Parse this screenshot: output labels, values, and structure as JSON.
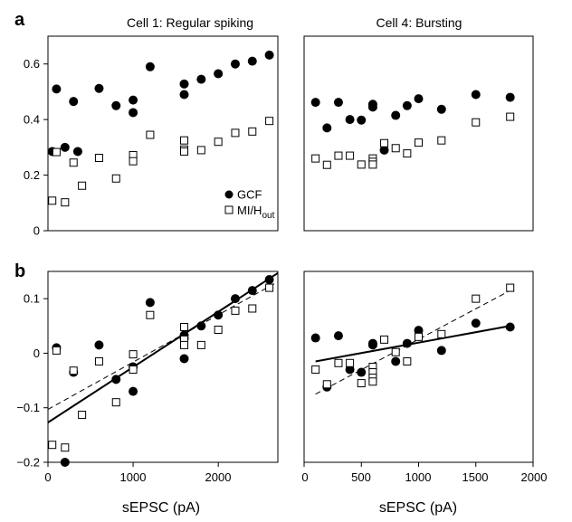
{
  "chart_data": [
    {
      "id": "a-cell1",
      "panel": "a",
      "type": "scatter",
      "title": "Cell 1: Regular spiking",
      "xlim": [
        0,
        2700
      ],
      "ylim": [
        0,
        0.7
      ],
      "yticks": [
        0,
        0.2,
        0.4,
        0.6
      ],
      "xticks": [],
      "grid": false,
      "legend": {
        "placement": "bottom-right",
        "entries": [
          "GCF",
          "MI/H"
        ]
      },
      "series": [
        {
          "name": "GCF",
          "marker": "filled-circle",
          "points": [
            [
              50,
              0.285
            ],
            [
              100,
              0.51
            ],
            [
              200,
              0.3
            ],
            [
              300,
              0.465
            ],
            [
              350,
              0.285
            ],
            [
              600,
              0.512
            ],
            [
              800,
              0.45
            ],
            [
              1000,
              0.47
            ],
            [
              1000,
              0.425
            ],
            [
              1200,
              0.59
            ],
            [
              1600,
              0.528
            ],
            [
              1600,
              0.49
            ],
            [
              1800,
              0.545
            ],
            [
              2000,
              0.565
            ],
            [
              2200,
              0.6
            ],
            [
              2400,
              0.61
            ],
            [
              2600,
              0.632
            ]
          ]
        },
        {
          "name": "MI/H",
          "subscript": "out",
          "marker": "open-square",
          "points": [
            [
              50,
              0.108
            ],
            [
              100,
              0.283
            ],
            [
              200,
              0.102
            ],
            [
              300,
              0.245
            ],
            [
              400,
              0.162
            ],
            [
              600,
              0.262
            ],
            [
              800,
              0.188
            ],
            [
              1000,
              0.272
            ],
            [
              1000,
              0.25
            ],
            [
              1200,
              0.345
            ],
            [
              1600,
              0.325
            ],
            [
              1600,
              0.292
            ],
            [
              1600,
              0.285
            ],
            [
              1800,
              0.29
            ],
            [
              2000,
              0.32
            ],
            [
              2200,
              0.352
            ],
            [
              2400,
              0.357
            ],
            [
              2600,
              0.395
            ]
          ]
        }
      ]
    },
    {
      "id": "a-cell4",
      "panel": "a",
      "type": "scatter",
      "title": "Cell 4: Bursting",
      "xlim": [
        0,
        2000
      ],
      "ylim": [
        0,
        0.7
      ],
      "yticks": [],
      "xticks": [],
      "grid": false,
      "series": [
        {
          "name": "GCF",
          "marker": "filled-circle",
          "points": [
            [
              100,
              0.462
            ],
            [
              200,
              0.37
            ],
            [
              300,
              0.462
            ],
            [
              400,
              0.4
            ],
            [
              500,
              0.398
            ],
            [
              600,
              0.455
            ],
            [
              600,
              0.445
            ],
            [
              700,
              0.29
            ],
            [
              800,
              0.415
            ],
            [
              900,
              0.45
            ],
            [
              1000,
              0.475
            ],
            [
              1200,
              0.437
            ],
            [
              1500,
              0.49
            ],
            [
              1800,
              0.48
            ]
          ]
        },
        {
          "name": "MI/H",
          "marker": "open-square",
          "points": [
            [
              100,
              0.26
            ],
            [
              200,
              0.237
            ],
            [
              300,
              0.27
            ],
            [
              400,
              0.27
            ],
            [
              500,
              0.238
            ],
            [
              600,
              0.26
            ],
            [
              600,
              0.248
            ],
            [
              600,
              0.238
            ],
            [
              700,
              0.315
            ],
            [
              800,
              0.297
            ],
            [
              900,
              0.278
            ],
            [
              1000,
              0.317
            ],
            [
              1200,
              0.325
            ],
            [
              1500,
              0.39
            ],
            [
              1800,
              0.41
            ]
          ]
        }
      ]
    },
    {
      "id": "b-cell1",
      "panel": "b",
      "type": "scatter",
      "xlabel": "sEPSC (pA)",
      "xlim": [
        0,
        2700
      ],
      "ylim": [
        -0.2,
        0.15
      ],
      "xticks": [
        0,
        1000,
        2000
      ],
      "yticks": [
        -0.2,
        -0.1,
        0,
        0.1
      ],
      "grid": false,
      "series": [
        {
          "name": "GCF",
          "marker": "filled-circle",
          "points": [
            [
              100,
              0.01
            ],
            [
              200,
              -0.2
            ],
            [
              300,
              -0.035
            ],
            [
              600,
              0.015
            ],
            [
              800,
              -0.048
            ],
            [
              1000,
              -0.025
            ],
            [
              1000,
              -0.07
            ],
            [
              1200,
              0.093
            ],
            [
              1600,
              0.033
            ],
            [
              1600,
              0.027
            ],
            [
              1600,
              -0.01
            ],
            [
              1800,
              0.05
            ],
            [
              2000,
              0.07
            ],
            [
              2200,
              0.1
            ],
            [
              2400,
              0.115
            ],
            [
              2600,
              0.135
            ]
          ]
        },
        {
          "name": "MI/H",
          "marker": "open-square",
          "points": [
            [
              50,
              -0.168
            ],
            [
              100,
              0.005
            ],
            [
              200,
              -0.173
            ],
            [
              300,
              -0.032
            ],
            [
              400,
              -0.113
            ],
            [
              600,
              -0.015
            ],
            [
              800,
              -0.09
            ],
            [
              1000,
              -0.03
            ],
            [
              1000,
              -0.002
            ],
            [
              1200,
              0.07
            ],
            [
              1600,
              0.048
            ],
            [
              1600,
              0.025
            ],
            [
              1600,
              0.015
            ],
            [
              1800,
              0.015
            ],
            [
              2000,
              0.043
            ],
            [
              2200,
              0.078
            ],
            [
              2400,
              0.082
            ],
            [
              2600,
              0.12
            ]
          ]
        }
      ],
      "fits": [
        {
          "style": "solid",
          "x": [
            0,
            2700
          ],
          "y": [
            -0.127,
            0.147
          ]
        },
        {
          "style": "dashed",
          "x": [
            0,
            2700
          ],
          "y": [
            -0.103,
            0.131
          ]
        }
      ]
    },
    {
      "id": "b-cell4",
      "panel": "b",
      "type": "scatter",
      "xlabel": "sEPSC (pA)",
      "xlim": [
        0,
        2000
      ],
      "ylim": [
        -0.2,
        0.15
      ],
      "xticks": [
        0,
        500,
        1000,
        1500,
        2000
      ],
      "yticks": [],
      "grid": false,
      "series": [
        {
          "name": "GCF",
          "marker": "filled-circle",
          "points": [
            [
              100,
              0.028
            ],
            [
              200,
              -0.062
            ],
            [
              300,
              0.032
            ],
            [
              400,
              -0.03
            ],
            [
              500,
              -0.035
            ],
            [
              600,
              0.015
            ],
            [
              600,
              0.018
            ],
            [
              800,
              -0.015
            ],
            [
              900,
              0.018
            ],
            [
              1000,
              0.042
            ],
            [
              1200,
              0.005
            ],
            [
              1500,
              0.055
            ],
            [
              1800,
              0.048
            ]
          ]
        },
        {
          "name": "MI/H",
          "marker": "open-square",
          "points": [
            [
              100,
              -0.03
            ],
            [
              200,
              -0.057
            ],
            [
              300,
              -0.018
            ],
            [
              400,
              -0.018
            ],
            [
              500,
              -0.055
            ],
            [
              600,
              -0.025
            ],
            [
              600,
              -0.035
            ],
            [
              600,
              -0.045
            ],
            [
              600,
              -0.052
            ],
            [
              700,
              0.025
            ],
            [
              800,
              0.002
            ],
            [
              900,
              -0.015
            ],
            [
              1000,
              0.03
            ],
            [
              1200,
              0.035
            ],
            [
              1500,
              0.1
            ],
            [
              1800,
              0.12
            ]
          ]
        }
      ],
      "fits": [
        {
          "style": "solid",
          "x": [
            100,
            1800
          ],
          "y": [
            -0.015,
            0.05
          ]
        },
        {
          "style": "dashed",
          "x": [
            100,
            1800
          ],
          "y": [
            -0.075,
            0.115
          ]
        }
      ]
    }
  ],
  "panel_letters": {
    "a": "a",
    "b": "b"
  },
  "tick_text": {
    "a_left_y": [
      "0",
      "0.2",
      "0.4",
      "0.6"
    ],
    "b_left_y": [
      "−0.2",
      "−0.1",
      "0",
      "0.1"
    ],
    "b_left_x": [
      "0",
      "1000",
      "2000"
    ],
    "b_right_x": [
      "0",
      "500",
      "1000",
      "1500",
      "2000"
    ]
  },
  "legend": {
    "gcf": "GCF",
    "mi": "MI/H",
    "mi_sub": "out"
  }
}
